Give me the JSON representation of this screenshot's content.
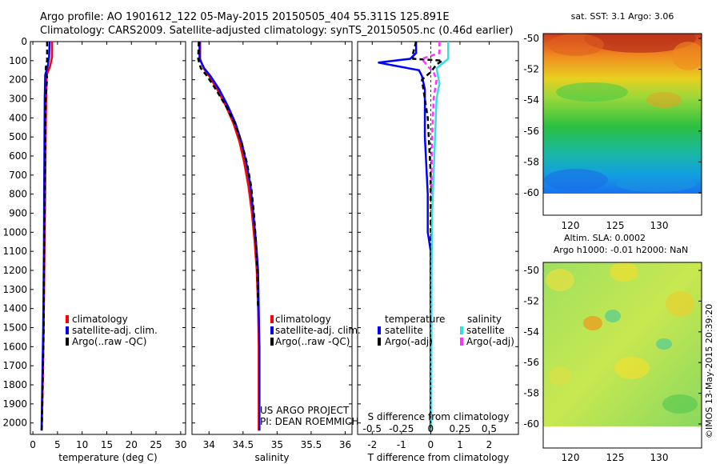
{
  "title_line1": "Argo profile: AO 1901612_122 05-May-2015 20150505_404 55.311S 125.891E",
  "title_line2": "Climatology: CARS2009. Satellite-adjusted climatology: synTS_20150505.nc (0.46d earlier)",
  "project_line1": "US ARGO PROJECT",
  "project_line2": "PI: DEAN ROEMMICH",
  "stamp": "©IMOS 13-May-2015 20:39:20",
  "colors": {
    "clim": "#ff0000",
    "sat": "#0000ff",
    "argo": "#000000",
    "sal_sat": "#33e0e0",
    "sal_argo": "#ff33ff"
  },
  "chart_data": [
    {
      "type": "line",
      "xlabel": "temperature (deg C)",
      "ylim": [
        2060,
        0
      ],
      "xlim": [
        -0.5,
        31
      ],
      "xticks": [
        "0",
        "5",
        "10",
        "15",
        "20",
        "25",
        "30"
      ],
      "yticks": [
        "0",
        "100",
        "200",
        "300",
        "400",
        "500",
        "600",
        "700",
        "800",
        "900",
        "1000",
        "1100",
        "1200",
        "1300",
        "1400",
        "1500",
        "1600",
        "1700",
        "1800",
        "1900",
        "2000"
      ],
      "legend": [
        "climatology",
        "satellite-adj. clim.",
        "Argo(..raw -QC)"
      ],
      "series": [
        {
          "name": "climatology",
          "color": "clim",
          "x": [
            3.9,
            3.9,
            3.5,
            2.8,
            2.7,
            2.6,
            2.5,
            2.35,
            2.2,
            2.0,
            1.8
          ],
          "y": [
            0,
            80,
            130,
            175,
            300,
            500,
            800,
            1100,
            1500,
            1800,
            2040
          ]
        },
        {
          "name": "satellite-adj. clim.",
          "color": "sat",
          "x": [
            3.4,
            3.3,
            3.0,
            2.5,
            2.4,
            2.35,
            2.3,
            2.25,
            2.1,
            1.9,
            1.75
          ],
          "y": [
            0,
            80,
            130,
            175,
            300,
            500,
            800,
            1100,
            1500,
            1800,
            2040
          ]
        },
        {
          "name": "Argo(..raw -QC)",
          "color": "argo",
          "dash": true,
          "x": [
            2.9,
            2.9,
            2.6,
            2.9,
            2.6,
            2.5,
            2.4,
            2.3,
            2.2,
            2.0,
            1.8
          ],
          "y": [
            0,
            100,
            140,
            190,
            300,
            500,
            800,
            1100,
            1500,
            1800,
            2040
          ]
        }
      ]
    },
    {
      "type": "line",
      "xlabel": "salinity",
      "ylim": [
        2060,
        0
      ],
      "xlim": [
        33.75,
        36.1
      ],
      "xticks": [
        "34",
        "34.5",
        "35",
        "35.5",
        "36"
      ],
      "legend": [
        "climatology",
        "satellite-adj. clim.",
        "Argo(..raw -QC)"
      ],
      "series": [
        {
          "name": "climatology",
          "color": "clim",
          "x": [
            33.87,
            33.87,
            33.92,
            34.0,
            34.12,
            34.25,
            34.36,
            34.45,
            34.52,
            34.58,
            34.63,
            34.67,
            34.7,
            34.72,
            34.73,
            34.73,
            34.73
          ],
          "y": [
            0,
            90,
            140,
            180,
            250,
            340,
            430,
            530,
            640,
            760,
            900,
            1050,
            1200,
            1400,
            1600,
            1850,
            2040
          ]
        },
        {
          "name": "satellite-adj. clim.",
          "color": "sat",
          "x": [
            33.86,
            33.86,
            33.93,
            34.02,
            34.15,
            34.28,
            34.39,
            34.48,
            34.55,
            34.61,
            34.65,
            34.69,
            34.72,
            34.73,
            34.74,
            34.74,
            34.74
          ],
          "y": [
            0,
            90,
            140,
            180,
            250,
            340,
            430,
            530,
            640,
            760,
            900,
            1050,
            1200,
            1400,
            1600,
            1850,
            2040
          ]
        },
        {
          "name": "Argo(..raw -QC)",
          "color": "argo",
          "dash": true,
          "x": [
            33.85,
            33.84,
            33.88,
            33.97,
            34.1,
            34.25,
            34.38,
            34.48,
            34.56,
            34.62,
            34.66,
            34.69,
            34.71,
            34.72
          ],
          "y": [
            0,
            90,
            140,
            180,
            250,
            340,
            430,
            530,
            640,
            760,
            900,
            1050,
            1200,
            1400
          ]
        }
      ]
    },
    {
      "type": "line",
      "xlabel": "T difference from climatology",
      "x2label": "S difference from climatology",
      "ylim": [
        2060,
        0
      ],
      "xlim": [
        -2.5,
        3.0
      ],
      "xticks": [
        "-2",
        "-1",
        "0",
        "1",
        "2"
      ],
      "x2ticks": [
        "-0.5",
        "-0.25",
        "0",
        "0.25",
        "0.5"
      ],
      "legend_headers": [
        "temperature",
        "salinity"
      ],
      "legend": [
        "satellite",
        "Argo(-adj)",
        "satellite",
        "Argo(-adj)"
      ],
      "series": [
        {
          "name": "satellite",
          "group": "temperature",
          "color": "sat",
          "x": [
            -0.5,
            -0.5,
            -0.7,
            -1.8,
            -1.1,
            -0.4,
            -0.3,
            -0.2,
            -0.2,
            -0.1,
            -0.1,
            0,
            0,
            0
          ],
          "y": [
            0,
            60,
            90,
            110,
            130,
            150,
            180,
            250,
            500,
            800,
            1000,
            1100,
            1500,
            2040
          ]
        },
        {
          "name": "Argo(-adj)",
          "group": "temperature",
          "color": "argo",
          "dash": true,
          "x": [
            -0.5,
            -0.6,
            -0.6,
            0.4,
            0.2,
            0.1,
            0,
            -0.3,
            -0.1,
            0,
            0,
            0
          ],
          "y": [
            0,
            60,
            90,
            100,
            120,
            140,
            160,
            200,
            400,
            700,
            1000,
            2040
          ]
        },
        {
          "name": "satellite",
          "group": "salinity",
          "color": "sal_sat",
          "x": [
            0.6,
            0.6,
            0.2,
            0.3,
            0.2,
            0.15,
            0.1,
            0.05,
            0.03,
            0.02
          ],
          "y": [
            0,
            90,
            140,
            220,
            300,
            500,
            700,
            900,
            1200,
            2040
          ]
        },
        {
          "name": "Argo(-adj)",
          "group": "salinity",
          "color": "sal_argo",
          "dash": true,
          "x": [
            0.3,
            0.3,
            -0.3,
            -0.1,
            0.1,
            0.2,
            0.1,
            0.05,
            0.02
          ],
          "y": [
            0,
            60,
            90,
            130,
            160,
            200,
            300,
            500,
            800
          ]
        }
      ]
    },
    {
      "type": "heatmap",
      "title": "sat. SST: 3.1 Argo: 3.06",
      "xticks": [
        "120",
        "125",
        "130"
      ],
      "yticks": [
        "-50",
        "-52",
        "-54",
        "-56",
        "-58",
        "-60"
      ]
    },
    {
      "type": "heatmap",
      "title_line1": "Altim. SLA: 0.0002",
      "title_line2": "Argo h1000: -0.01 h2000: NaN",
      "xticks": [
        "120",
        "125",
        "130"
      ],
      "yticks": [
        "-50",
        "-52",
        "-54",
        "-56",
        "-58",
        "-60"
      ]
    }
  ]
}
